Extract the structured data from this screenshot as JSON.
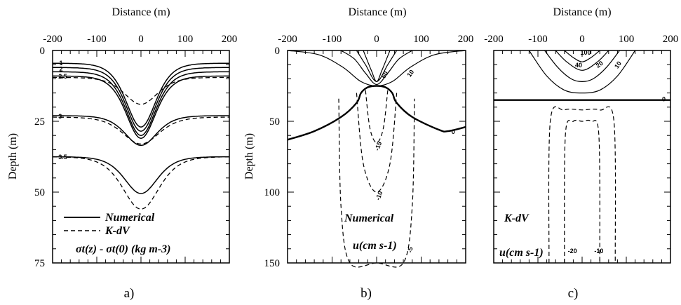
{
  "figure": {
    "panels": [
      {
        "id": "a",
        "label": "a)",
        "xlabel": "Distance (m)",
        "ylabel": "Depth (m)",
        "legend": {
          "solid": "Numerical",
          "dashed": "K-dV",
          "quantity": "σt(z) - σt(0) (kg m-3)"
        }
      },
      {
        "id": "b",
        "label": "b)",
        "xlabel": "Distance (m)",
        "ylabel": "Depth (m)",
        "annotation": "Numerical",
        "units": "u(cm s-1)"
      },
      {
        "id": "c",
        "label": "c)",
        "xlabel": "Distance (m)",
        "annotation": "K-dV",
        "units": "u(cm s-1)"
      }
    ]
  },
  "chart_data": [
    {
      "type": "line",
      "panel": "a",
      "xlabel": "Distance (m)",
      "ylabel": "Depth (m)",
      "xlim": [
        -200,
        200
      ],
      "ylim": [
        75,
        0
      ],
      "xticks": [
        -200,
        -100,
        0,
        100,
        200
      ],
      "yticks": [
        0,
        25,
        50,
        75
      ],
      "contour_labels": [
        "1",
        "2",
        "2.5",
        "3",
        "3.5"
      ],
      "series": [
        {
          "name": "Numerical",
          "style": "solid",
          "level": "1",
          "baseline_depth": 4.5,
          "trough_depth": 27,
          "half_width": 45
        },
        {
          "name": "Numerical",
          "style": "solid",
          "level": "2",
          "baseline_depth": 6,
          "trough_depth": 28.5,
          "half_width": 45
        },
        {
          "name": "Numerical",
          "style": "solid",
          "level": "2",
          "baseline_depth": 7.5,
          "trough_depth": 30,
          "half_width": 45
        },
        {
          "name": "Numerical",
          "style": "solid",
          "level": "2.5",
          "baseline_depth": 9,
          "trough_depth": 31,
          "half_width": 45
        },
        {
          "name": "K-dV",
          "style": "dashed",
          "level": "2.5",
          "baseline_depth": 9.5,
          "trough_depth": 19,
          "half_width": 50
        },
        {
          "name": "Numerical",
          "style": "solid",
          "level": "3",
          "baseline_depth": 23,
          "trough_depth": 33.5,
          "half_width": 48
        },
        {
          "name": "K-dV",
          "style": "dashed",
          "level": "3",
          "baseline_depth": 23.5,
          "trough_depth": 33,
          "half_width": 55
        },
        {
          "name": "Numerical",
          "style": "solid",
          "level": "3.5",
          "baseline_depth": 37.5,
          "trough_depth": 50.5,
          "half_width": 50
        },
        {
          "name": "K-dV",
          "style": "dashed",
          "level": "3.5",
          "baseline_depth": 37.5,
          "trough_depth": 56,
          "half_width": 55
        }
      ]
    },
    {
      "type": "contour",
      "panel": "b",
      "xlabel": "Distance (m)",
      "ylabel": "Depth (m)",
      "xlim": [
        -200,
        200
      ],
      "ylim": [
        150,
        0
      ],
      "xticks": [
        -200,
        -100,
        0,
        100,
        200
      ],
      "yticks": [
        0,
        50,
        100,
        150
      ],
      "contour_labels": [
        "60",
        "10",
        "0",
        "-15",
        "-10",
        "-5"
      ],
      "zero_contour": {
        "x": [
          -200,
          -140,
          -80,
          -45,
          -35,
          -20,
          0,
          20,
          35,
          45,
          80,
          140,
          160,
          200
        ],
        "depth": [
          63,
          57,
          47,
          37,
          30,
          26,
          25,
          26,
          30,
          37,
          47,
          56,
          57,
          54
        ]
      },
      "positive_contours": [
        {
          "x": [
            -200,
            -130,
            -75,
            -35,
            0,
            35,
            75,
            130,
            200
          ],
          "depth": [
            0,
            3,
            12,
            22,
            25,
            22,
            12,
            3,
            0
          ]
        },
        {
          "x": [
            -80,
            -50,
            -25,
            0,
            25,
            50,
            80
          ],
          "depth": [
            0,
            6,
            16,
            24,
            16,
            6,
            0
          ]
        },
        {
          "x": [
            -45,
            -25,
            0,
            25,
            45
          ],
          "depth": [
            0,
            10,
            22,
            10,
            0
          ]
        },
        {
          "x": [
            -30,
            -12,
            0,
            12,
            30
          ],
          "depth": [
            0,
            14,
            22,
            14,
            0
          ]
        }
      ],
      "negative_contours": [
        {
          "x": [
            -25,
            -15,
            0,
            15,
            25
          ],
          "depth": [
            28,
            55,
            65,
            55,
            28
          ]
        },
        {
          "x": [
            -45,
            -30,
            0,
            30,
            45
          ],
          "depth": [
            30,
            80,
            100,
            80,
            30
          ]
        },
        {
          "x": [
            -85,
            -80,
            -60,
            0,
            60,
            80,
            85
          ],
          "depth": [
            34,
            110,
            150,
            150,
            150,
            110,
            34
          ]
        }
      ]
    },
    {
      "type": "contour",
      "panel": "c",
      "xlabel": "Distance (m)",
      "xlim": [
        -200,
        200
      ],
      "ylim": [
        150,
        0
      ],
      "xticks": [
        -200,
        -100,
        0,
        100,
        200
      ],
      "contour_labels": [
        "100",
        "40",
        "20",
        "10",
        "0",
        "-20",
        "-10"
      ],
      "zero_contour": {
        "x": [
          -200,
          200
        ],
        "depth": [
          35,
          35
        ]
      },
      "positive_contours": [
        {
          "x": [
            -120,
            -80,
            -40,
            0,
            40,
            80,
            120
          ],
          "depth": [
            0,
            18,
            28,
            30,
            28,
            18,
            0
          ]
        },
        {
          "x": [
            -85,
            -55,
            -25,
            0,
            25,
            55,
            85
          ],
          "depth": [
            0,
            12,
            20,
            22,
            20,
            12,
            0
          ]
        },
        {
          "x": [
            -60,
            -35,
            0,
            35,
            60
          ],
          "depth": [
            0,
            8,
            14,
            8,
            0
          ]
        },
        {
          "x": [
            -40,
            -20,
            0,
            20,
            40
          ],
          "depth": [
            0,
            5,
            8,
            5,
            0
          ]
        }
      ],
      "negative_contours": [
        {
          "x": [
            -40,
            -38,
            -20,
            0,
            20,
            38,
            40
          ],
          "depth": [
            150,
            60,
            50,
            50,
            50,
            60,
            150
          ]
        },
        {
          "x": [
            -75,
            -72,
            -40,
            0,
            40,
            72,
            75
          ],
          "depth": [
            150,
            50,
            42,
            42,
            42,
            50,
            150
          ]
        }
      ]
    }
  ]
}
